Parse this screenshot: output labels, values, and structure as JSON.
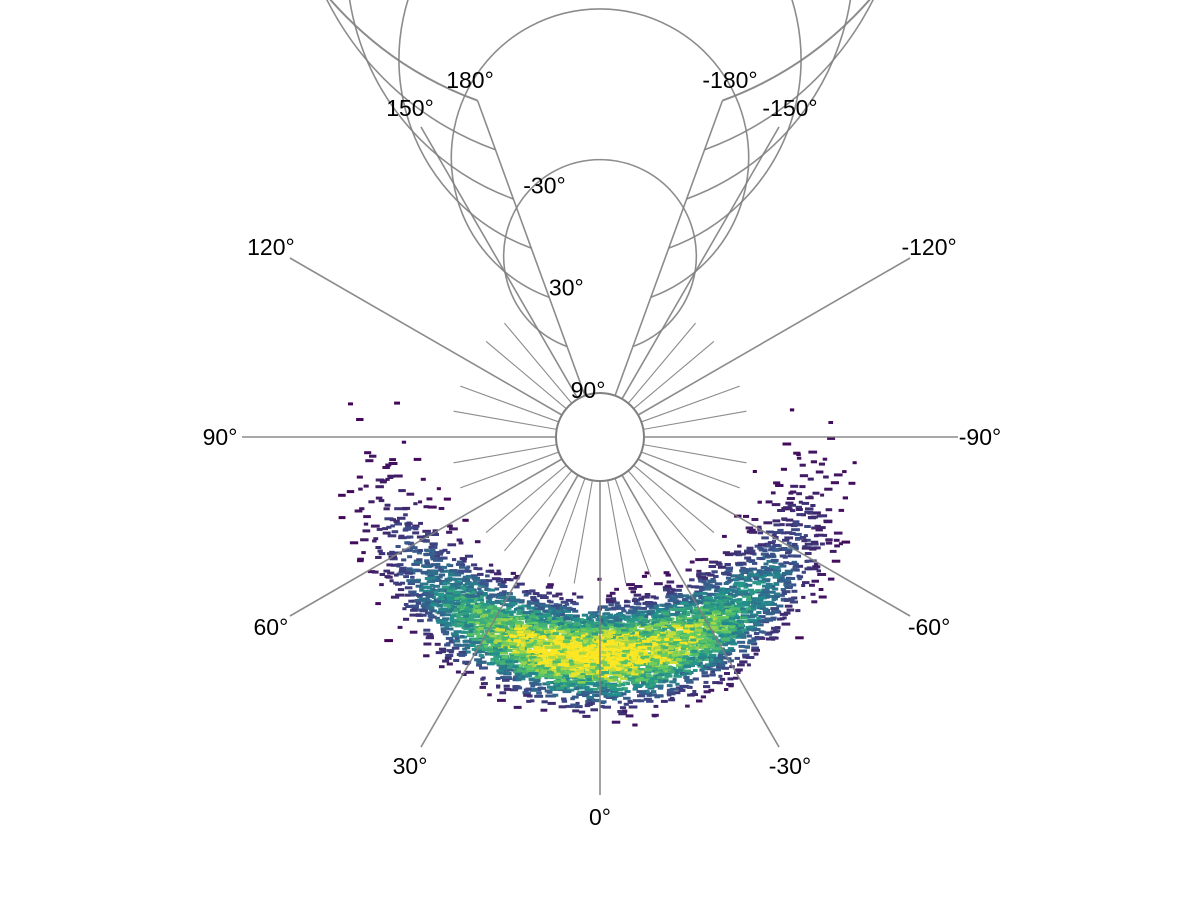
{
  "chart_data": {
    "type": "heatmap",
    "subtype": "polar-histogram",
    "title": "",
    "angle_axis": {
      "range_deg": [
        -180,
        180
      ],
      "zero_direction": "bottom",
      "tick_values": [
        -180,
        -150,
        -120,
        -90,
        -60,
        -30,
        0,
        30,
        60,
        90,
        120,
        150,
        180
      ],
      "tick_labels": [
        "-180°",
        "-150°",
        "-120°",
        "-90°",
        "-60°",
        "-30°",
        "0°",
        "30°",
        "60°",
        "90°",
        "120°",
        "150°",
        "180°"
      ]
    },
    "radial_axis": {
      "range_deg": [
        90,
        -90
      ],
      "tick_values": [
        90,
        60,
        30,
        0,
        -30,
        -60,
        -90
      ],
      "labeled_ticks": [
        90,
        30,
        -30
      ],
      "tick_labels": [
        "90°",
        "30°",
        "-30°"
      ]
    },
    "grid": true,
    "colormap": "viridis",
    "density_peak": {
      "angle_deg": 0,
      "radius_deg": -10
    },
    "density_spread": {
      "angle_deg": 35,
      "radius_deg": 16
    }
  },
  "colors": {
    "grid": "#808080",
    "low": "#440154",
    "mid": "#21918c",
    "high": "#fde725"
  }
}
